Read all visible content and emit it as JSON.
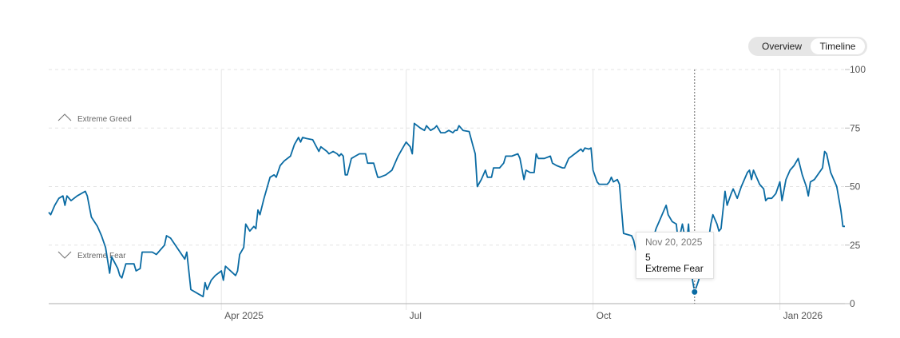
{
  "toggle": {
    "overview_label": "Overview",
    "timeline_label": "Timeline"
  },
  "tooltip": {
    "date": "Nov 20, 2025",
    "value": "5",
    "rating": "Extreme Fear"
  },
  "chart_data": {
    "type": "line",
    "title": "",
    "xlabel": "",
    "ylabel": "",
    "ylim": [
      0,
      100
    ],
    "y_ticks": [
      "0",
      "25",
      "50",
      "75",
      "100"
    ],
    "x_tick_labels": [
      "Apr 2025",
      "Jul",
      "Oct",
      "Jan 2026"
    ],
    "zones": [
      "Extreme Greed",
      "Extreme Fear"
    ],
    "grid": true,
    "line_color": "#0a6ba3",
    "highlight": {
      "date": "Nov 20, 2025",
      "value": 5,
      "rating": "Extreme Fear"
    },
    "series": [
      {
        "points": [
          [
            "Jan 6, 2025",
            39
          ],
          [
            "Jan 7, 2025",
            38
          ],
          [
            "Jan 9, 2025",
            42
          ],
          [
            "Jan 11, 2025",
            45
          ],
          [
            "Jan 13, 2025",
            46
          ],
          [
            "Jan 14, 2025",
            42
          ],
          [
            "Jan 15, 2025",
            46
          ],
          [
            "Jan 17, 2025",
            44
          ],
          [
            "Jan 20, 2025",
            46
          ],
          [
            "Jan 24, 2025",
            48
          ],
          [
            "Jan 25, 2025",
            46
          ],
          [
            "Jan 27, 2025",
            37
          ],
          [
            "Jan 30, 2025",
            33
          ],
          [
            "Feb 1, 2025",
            29
          ],
          [
            "Feb 3, 2025",
            24
          ],
          [
            "Feb 5, 2025",
            13
          ],
          [
            "Feb 6, 2025",
            20
          ],
          [
            "Feb 9, 2025",
            15
          ],
          [
            "Feb 10, 2025",
            12
          ],
          [
            "Feb 11, 2025",
            11
          ],
          [
            "Feb 13, 2025",
            17
          ],
          [
            "Feb 17, 2025",
            17
          ],
          [
            "Feb 18, 2025",
            14
          ],
          [
            "Feb 20, 2025",
            15
          ],
          [
            "Feb 21, 2025",
            22
          ],
          [
            "Feb 26, 2025",
            22
          ],
          [
            "Feb 28, 2025",
            21
          ],
          [
            "Mar 4, 2025",
            25
          ],
          [
            "Mar 5, 2025",
            29
          ],
          [
            "Mar 7, 2025",
            28
          ],
          [
            "Mar 14, 2025",
            19
          ],
          [
            "Mar 15, 2025",
            22
          ],
          [
            "Mar 17, 2025",
            6
          ],
          [
            "Mar 21, 2025",
            4
          ],
          [
            "Mar 23, 2025",
            3
          ],
          [
            "Mar 24, 2025",
            9
          ],
          [
            "Mar 25, 2025",
            6
          ],
          [
            "Mar 27, 2025",
            10
          ],
          [
            "Mar 29, 2025",
            12
          ],
          [
            "Apr 1, 2025",
            14
          ],
          [
            "Apr 2, 2025",
            10
          ],
          [
            "Apr 3, 2025",
            16
          ],
          [
            "Apr 8, 2025",
            12
          ],
          [
            "Apr 9, 2025",
            14
          ],
          [
            "Apr 10, 2025",
            21
          ],
          [
            "Apr 12, 2025",
            24
          ],
          [
            "Apr 13, 2025",
            34
          ],
          [
            "Apr 15, 2025",
            31
          ],
          [
            "Apr 17, 2025",
            33
          ],
          [
            "Apr 18, 2025",
            32
          ],
          [
            "Apr 19, 2025",
            40
          ],
          [
            "Apr 20, 2025",
            38
          ],
          [
            "Apr 22, 2025",
            45
          ],
          [
            "Apr 25, 2025",
            54
          ],
          [
            "Apr 27, 2025",
            55
          ],
          [
            "Apr 28, 2025",
            54
          ],
          [
            "Apr 30, 2025",
            59
          ],
          [
            "May 2, 2025",
            61
          ],
          [
            "May 5, 2025",
            63
          ],
          [
            "May 7, 2025",
            68
          ],
          [
            "May 9, 2025",
            71
          ],
          [
            "May 10, 2025",
            69
          ],
          [
            "May 11, 2025",
            71
          ],
          [
            "May 13, 2025",
            70.5
          ],
          [
            "May 16, 2025",
            70
          ],
          [
            "May 19, 2025",
            65
          ],
          [
            "May 20, 2025",
            67
          ],
          [
            "May 23, 2025",
            65
          ],
          [
            "May 24, 2025",
            64
          ],
          [
            "May 26, 2025",
            65
          ],
          [
            "May 28, 2025",
            64
          ],
          [
            "May 29, 2025",
            63
          ],
          [
            "May 30, 2025",
            64
          ],
          [
            "May 31, 2025",
            63
          ],
          [
            "Jun 1, 2025",
            55
          ],
          [
            "Jun 2, 2025",
            55
          ],
          [
            "Jun 4, 2025",
            62
          ],
          [
            "Jun 6, 2025",
            63
          ],
          [
            "Jun 8, 2025",
            64
          ],
          [
            "Jun 11, 2025",
            64
          ],
          [
            "Jun 12, 2025",
            60
          ],
          [
            "Jun 15, 2025",
            60
          ],
          [
            "Jun 17, 2025",
            54
          ],
          [
            "Jun 18, 2025",
            54
          ],
          [
            "Jun 21, 2025",
            55
          ],
          [
            "Jun 24, 2025",
            57
          ],
          [
            "Jun 26, 2025",
            61
          ],
          [
            "Jun 27, 2025",
            63
          ],
          [
            "Jun 29, 2025",
            66
          ],
          [
            "Jul 1, 2025",
            69
          ],
          [
            "Jul 3, 2025",
            67
          ],
          [
            "Jul 4, 2025",
            64
          ],
          [
            "Jul 5, 2025",
            77
          ],
          [
            "Jul 8, 2025",
            75
          ],
          [
            "Jul 10, 2025",
            74
          ],
          [
            "Jul 11, 2025",
            76
          ],
          [
            "Jul 13, 2025",
            74
          ],
          [
            "Jul 15, 2025",
            75
          ],
          [
            "Jul 16, 2025",
            76
          ],
          [
            "Jul 18, 2025",
            73
          ],
          [
            "Jul 20, 2025",
            73
          ],
          [
            "Jul 22, 2025",
            74
          ],
          [
            "Jul 24, 2025",
            73
          ],
          [
            "Jul 25, 2025",
            74
          ],
          [
            "Jul 26, 2025",
            74
          ],
          [
            "Jul 27, 2025",
            76
          ],
          [
            "Jul 29, 2025",
            74
          ],
          [
            "Aug 1, 2025",
            73.5
          ],
          [
            "Aug 3, 2025",
            67
          ],
          [
            "Aug 4, 2025",
            64
          ],
          [
            "Aug 5, 2025",
            50
          ],
          [
            "Aug 7, 2025",
            53
          ],
          [
            "Aug 9, 2025",
            57
          ],
          [
            "Aug 10, 2025",
            54
          ],
          [
            "Aug 12, 2025",
            54
          ],
          [
            "Aug 13, 2025",
            58
          ],
          [
            "Aug 16, 2025",
            58
          ],
          [
            "Aug 18, 2025",
            60
          ],
          [
            "Aug 19, 2025",
            63
          ],
          [
            "Aug 22, 2025",
            63
          ],
          [
            "Aug 25, 2025",
            64
          ],
          [
            "Aug 26, 2025",
            62
          ],
          [
            "Aug 28, 2025",
            53
          ],
          [
            "Aug 29, 2025",
            57
          ],
          [
            "Aug 31, 2025",
            56
          ],
          [
            "Sep 2, 2025",
            56
          ],
          [
            "Sep 3, 2025",
            64
          ],
          [
            "Sep 4, 2025",
            62
          ],
          [
            "Sep 7, 2025",
            62
          ],
          [
            "Sep 10, 2025",
            63
          ],
          [
            "Sep 11, 2025",
            60
          ],
          [
            "Sep 13, 2025",
            59
          ],
          [
            "Sep 16, 2025",
            58
          ],
          [
            "Sep 17, 2025",
            58
          ],
          [
            "Sep 19, 2025",
            62
          ],
          [
            "Sep 22, 2025",
            64
          ],
          [
            "Sep 25, 2025",
            66
          ],
          [
            "Sep 26, 2025",
            65
          ],
          [
            "Sep 27, 2025",
            66.5
          ],
          [
            "Sep 29, 2025",
            66
          ],
          [
            "Sep 30, 2025",
            66.5
          ],
          [
            "Oct 1, 2025",
            57
          ],
          [
            "Oct 3, 2025",
            52
          ],
          [
            "Oct 4, 2025",
            51
          ],
          [
            "Oct 6, 2025",
            51
          ],
          [
            "Oct 8, 2025",
            51
          ],
          [
            "Oct 9, 2025",
            52
          ],
          [
            "Oct 10, 2025",
            54
          ],
          [
            "Oct 11, 2025",
            52
          ],
          [
            "Oct 13, 2025",
            53
          ],
          [
            "Oct 14, 2025",
            51
          ],
          [
            "Oct 16, 2025",
            30
          ],
          [
            "Oct 20, 2025",
            29
          ],
          [
            "Oct 21, 2025",
            27
          ],
          [
            "Oct 22, 2025",
            23
          ],
          [
            "Oct 24, 2025",
            22
          ],
          [
            "Oct 25, 2025",
            26
          ],
          [
            "Oct 27, 2025",
            30
          ],
          [
            "Oct 29, 2025",
            27
          ],
          [
            "Oct 31, 2025",
            29
          ],
          [
            "Nov 1, 2025",
            32
          ],
          [
            "Nov 3, 2025",
            36
          ],
          [
            "Nov 5, 2025",
            40
          ],
          [
            "Nov 6, 2025",
            42
          ],
          [
            "Nov 7, 2025",
            38
          ],
          [
            "Nov 9, 2025",
            35
          ],
          [
            "Nov 11, 2025",
            34
          ],
          [
            "Nov 12, 2025",
            26
          ],
          [
            "Nov 14, 2025",
            34
          ],
          [
            "Nov 16, 2025",
            25
          ],
          [
            "Nov 17, 2025",
            34
          ],
          [
            "Nov 18, 2025",
            19
          ],
          [
            "Nov 19, 2025",
            10
          ],
          [
            "Nov 20, 2025",
            5
          ],
          [
            "Nov 22, 2025",
            10
          ],
          [
            "Nov 23, 2025",
            15
          ],
          [
            "Nov 26, 2025",
            22
          ],
          [
            "Nov 28, 2025",
            34
          ],
          [
            "Nov 29, 2025",
            38
          ],
          [
            "Dec 1, 2025",
            34
          ],
          [
            "Dec 2, 2025",
            31
          ],
          [
            "Dec 3, 2025",
            32
          ],
          [
            "Dec 5, 2025",
            48
          ],
          [
            "Dec 6, 2025",
            42
          ],
          [
            "Dec 8, 2025",
            47
          ],
          [
            "Dec 9, 2025",
            49
          ],
          [
            "Dec 11, 2025",
            45
          ],
          [
            "Dec 13, 2025",
            50
          ],
          [
            "Dec 16, 2025",
            56
          ],
          [
            "Dec 17, 2025",
            57
          ],
          [
            "Dec 18, 2025",
            53
          ],
          [
            "Dec 19, 2025",
            57
          ],
          [
            "Dec 22, 2025",
            51
          ],
          [
            "Dec 24, 2025",
            49
          ],
          [
            "Dec 25, 2025",
            44
          ],
          [
            "Dec 26, 2025",
            45
          ],
          [
            "Dec 28, 2025",
            45
          ],
          [
            "Dec 30, 2025",
            47
          ],
          [
            "Jan 1, 2026",
            52
          ],
          [
            "Jan 2, 2026",
            44
          ],
          [
            "Jan 4, 2026",
            53
          ],
          [
            "Jan 6, 2026",
            57
          ],
          [
            "Jan 8, 2026",
            59
          ],
          [
            "Jan 10, 2026",
            62
          ],
          [
            "Jan 12, 2026",
            55
          ],
          [
            "Jan 14, 2026",
            50
          ],
          [
            "Jan 15, 2026",
            46
          ],
          [
            "Jan 16, 2026",
            52
          ],
          [
            "Jan 18, 2026",
            53
          ],
          [
            "Jan 22, 2026",
            58
          ],
          [
            "Jan 23, 2026",
            65
          ],
          [
            "Jan 24, 2026",
            64
          ],
          [
            "Jan 26, 2026",
            56
          ],
          [
            "Jan 28, 2026",
            52
          ],
          [
            "Jan 29, 2026",
            50
          ],
          [
            "Jan 31, 2026",
            40
          ],
          [
            "Feb 1, 2026",
            33
          ],
          [
            "Feb 2, 2026",
            33
          ]
        ]
      }
    ]
  }
}
